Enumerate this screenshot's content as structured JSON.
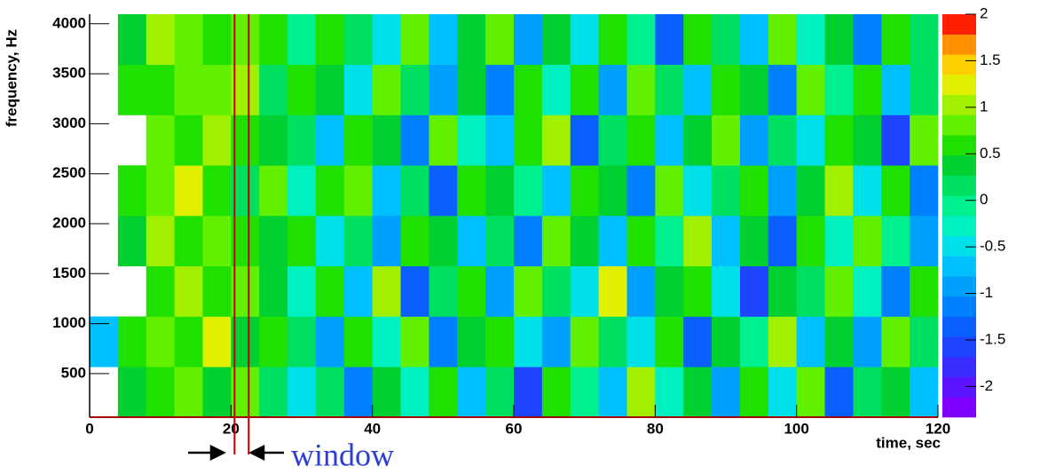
{
  "chart_data": {
    "type": "heatmap",
    "xlabel": "time, sec",
    "ylabel": "frequency, Hz",
    "xlim": [
      0,
      120
    ],
    "xticks": [
      0,
      20,
      40,
      60,
      80,
      100,
      120
    ],
    "ylim": [
      64,
      4096
    ],
    "yticks": [
      500,
      1000,
      1500,
      2000,
      2500,
      3000,
      3500,
      4000
    ],
    "zlim": [
      -2.33,
      2
    ],
    "zticks": [
      -2,
      -1.5,
      -1,
      -0.5,
      0,
      0.5,
      1,
      1.5,
      2
    ],
    "palette": [
      "#7f00ff",
      "#5a14ff",
      "#3a2bff",
      "#1e44ff",
      "#0a60ff",
      "#0080ff",
      "#00a0ff",
      "#00c0ff",
      "#00e0e8",
      "#00f0c0",
      "#00f090",
      "#00e060",
      "#00d030",
      "#20e000",
      "#60f000",
      "#a0f000",
      "#e0f000",
      "#ffd000",
      "#ff9000",
      "#ff2000"
    ],
    "xbins": [
      0,
      4,
      8,
      12,
      16,
      20,
      24,
      28,
      32,
      36,
      40,
      44,
      48,
      52,
      56,
      60,
      64,
      68,
      72,
      76,
      80,
      84,
      88,
      92,
      96,
      100,
      104,
      108,
      112,
      116,
      120
    ],
    "ybins": [
      64,
      568,
      1072,
      1576,
      2080,
      2584,
      3088,
      3592,
      4096
    ],
    "z": [
      [
        null,
        0.3,
        0.6,
        0.8,
        0.4,
        0.9,
        0.2,
        -0.5,
        0.1,
        -1.2,
        0.4,
        -0.3,
        0.7,
        -0.8,
        0.2,
        -1.5,
        0.5,
        0.0,
        -0.6,
        1.1,
        -0.2,
        0.3,
        -1.0,
        0.6,
        -0.4,
        0.8,
        -1.3,
        0.1,
        0.4,
        -0.7
      ],
      [
        -0.8,
        0.5,
        0.9,
        0.6,
        1.2,
        0.3,
        0.7,
        0.1,
        -0.9,
        0.5,
        -0.2,
        0.8,
        -1.1,
        0.3,
        0.6,
        -0.4,
        -1.0,
        0.9,
        0.2,
        -0.5,
        0.7,
        -1.4,
        0.4,
        0.0,
        1.0,
        -0.6,
        0.3,
        -0.9,
        0.8,
        0.1
      ],
      [
        null,
        null,
        0.7,
        1.1,
        0.5,
        0.8,
        0.4,
        -0.2,
        0.6,
        -0.7,
        1.0,
        -1.3,
        0.2,
        0.5,
        -0.9,
        0.8,
        0.1,
        -0.4,
        1.2,
        -1.0,
        0.3,
        0.6,
        -0.5,
        -1.6,
        0.4,
        0.2,
        0.9,
        -0.3,
        -1.1,
        0.5
      ],
      [
        null,
        0.4,
        1.0,
        0.7,
        0.9,
        0.5,
        0.3,
        0.6,
        -0.4,
        0.2,
        -1.0,
        0.7,
        0.4,
        -0.6,
        0.1,
        -1.2,
        0.9,
        0.3,
        -0.8,
        0.5,
        -0.1,
        1.0,
        -0.7,
        0.4,
        -1.3,
        0.6,
        -0.2,
        0.8,
        0.0,
        -0.9
      ],
      [
        null,
        0.6,
        0.8,
        1.3,
        0.6,
        0.2,
        0.9,
        -0.3,
        0.5,
        0.8,
        -0.6,
        0.1,
        -1.4,
        0.6,
        0.3,
        0.0,
        -0.8,
        0.7,
        0.4,
        -1.1,
        0.9,
        -0.4,
        0.2,
        0.7,
        -0.9,
        0.3,
        1.1,
        -0.5,
        0.6,
        -1.2
      ],
      [
        null,
        null,
        0.9,
        0.6,
        1.1,
        0.7,
        0.4,
        0.2,
        -0.8,
        0.6,
        0.3,
        -1.1,
        0.8,
        -0.2,
        -0.7,
        0.5,
        1.0,
        -1.3,
        0.2,
        0.6,
        -0.6,
        0.4,
        0.9,
        -1.0,
        0.1,
        -0.4,
        0.7,
        0.3,
        -1.5,
        0.8
      ],
      [
        null,
        0.5,
        0.7,
        0.9,
        0.8,
        1.0,
        0.1,
        0.5,
        0.3,
        -0.5,
        0.9,
        0.2,
        -0.9,
        0.4,
        -1.2,
        0.7,
        -0.3,
        0.5,
        -1.0,
        0.8,
        0.1,
        -0.7,
        0.6,
        0.3,
        -1.2,
        0.9,
        -0.1,
        0.5,
        -0.8,
        0.2
      ],
      [
        null,
        0.3,
        1.1,
        0.8,
        0.5,
        0.9,
        0.6,
        -0.1,
        0.7,
        0.2,
        -0.4,
        0.9,
        -0.7,
        0.3,
        0.8,
        -1.0,
        0.4,
        -0.5,
        0.6,
        0.0,
        -1.3,
        0.7,
        0.2,
        -0.6,
        0.9,
        -0.2,
        0.4,
        -1.1,
        0.6,
        0.1
      ]
    ],
    "window": {
      "text": "window",
      "x": [
        20.5,
        22.5
      ],
      "color": "#c00000"
    }
  }
}
